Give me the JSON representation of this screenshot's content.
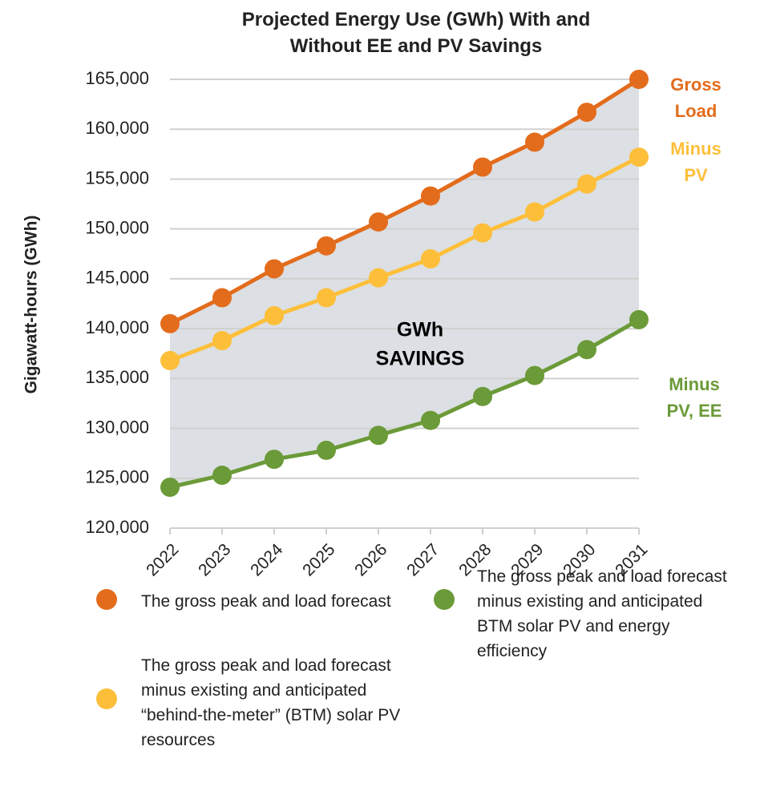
{
  "chart_data": {
    "type": "line",
    "title": "Projected Energy Use (GWh) With and Without EE and PV Savings",
    "ylabel": "Gigawatt-hours (GWh)",
    "x": [
      "2022",
      "2023",
      "2024",
      "2025",
      "2026",
      "2027",
      "2028",
      "2029",
      "2030",
      "2031"
    ],
    "ylim": [
      120000,
      165000
    ],
    "yticks": [
      {
        "value": 120000,
        "label": "120,000"
      },
      {
        "value": 125000,
        "label": "125,000"
      },
      {
        "value": 130000,
        "label": "130,000"
      },
      {
        "value": 135000,
        "label": "135,000"
      },
      {
        "value": 140000,
        "label": "140,000"
      },
      {
        "value": 145000,
        "label": "145,000"
      },
      {
        "value": 150000,
        "label": "150,000"
      },
      {
        "value": 155000,
        "label": "155,000"
      },
      {
        "value": 160000,
        "label": "160,000"
      },
      {
        "value": 165000,
        "label": "165,000"
      }
    ],
    "grid": true,
    "series": [
      {
        "name": "The gross peak and load forecast",
        "color": "#e36c1c",
        "values": [
          140500,
          143100,
          146000,
          148300,
          150700,
          153300,
          156200,
          158700,
          161700,
          165000
        ]
      },
      {
        "name": "The gross peak and load forecast minus existing and anticipated “behind-the-meter” (BTM) solar PV resources",
        "color": "#fdbf3a",
        "values": [
          136800,
          138800,
          141300,
          143100,
          145100,
          147000,
          149600,
          151700,
          154500,
          157200
        ]
      },
      {
        "name": "The gross peak and load forecast minus existing and anticipated BTM solar PV and energy efficiency",
        "color": "#6b9a38",
        "values": [
          124100,
          125300,
          126900,
          127800,
          129300,
          130800,
          133200,
          135300,
          137900,
          140900
        ]
      }
    ],
    "annotations": [
      {
        "lines": [
          "Gross",
          "Load"
        ],
        "color": "#e36c1c"
      },
      {
        "lines": [
          "Minus",
          "PV"
        ],
        "color": "#fdbf3a"
      },
      {
        "lines": [
          "Minus",
          "PV, EE"
        ],
        "color": "#6b9a38"
      },
      {
        "lines": [
          "GWh",
          "SAVINGS"
        ],
        "color": "#000000"
      }
    ]
  }
}
